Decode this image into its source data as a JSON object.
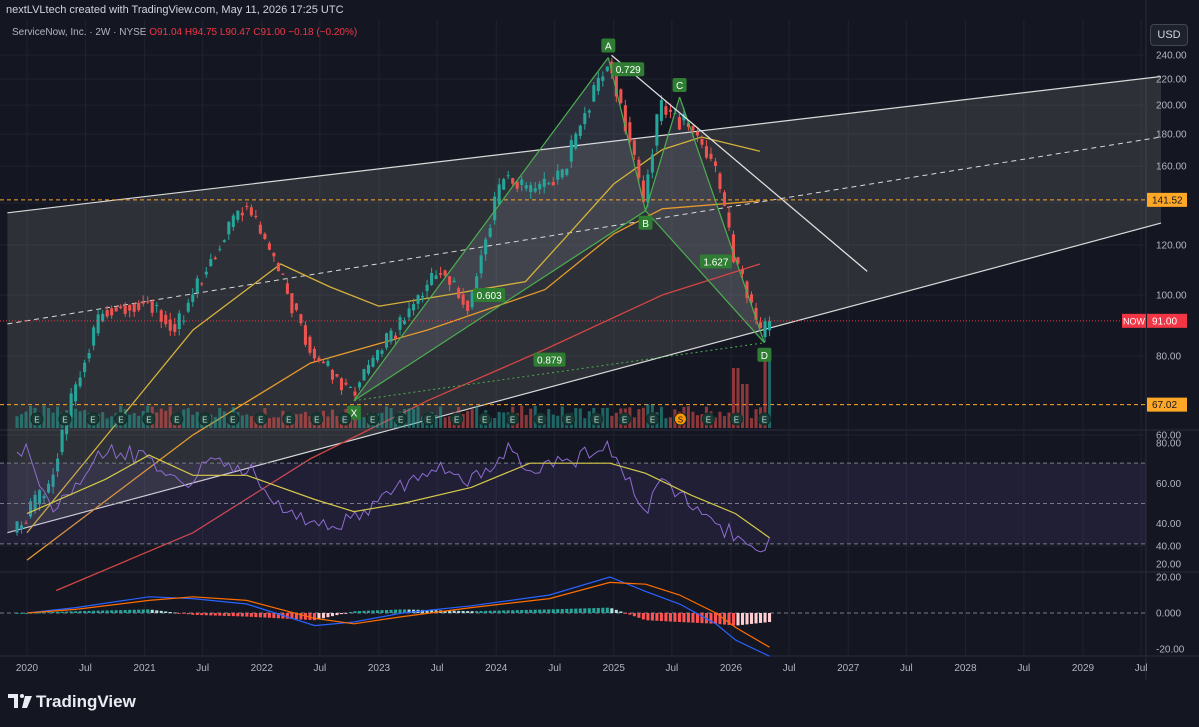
{
  "watermark": "nextLVLtech created with TradingView.com, May 11, 2026 17:25 UTC",
  "symbol": {
    "name": "ServiceNow, Inc. · 2W · NYSE",
    "ohlc": "O91.04 H94.75 L90.47 C91.00 −0.18 (−0.20%)"
  },
  "currency_button": "USD",
  "brand": "TradingView",
  "colors": {
    "up": "#26a69a",
    "down": "#ef5350",
    "pattern": "#4caf50",
    "price_line": "#f23645",
    "level": "#ffa726"
  },
  "chart_data": [
    {
      "type": "candlestick",
      "timeframe": "2W",
      "yscale": "log",
      "ylim": [
        34,
        250
      ],
      "x_tick_labels": [
        "2020",
        "Jul",
        "2021",
        "Jul",
        "2022",
        "Jul",
        "2023",
        "Jul",
        "2024",
        "Jul",
        "2025",
        "Jul",
        "2026",
        "Jul",
        "2027",
        "Jul",
        "2028",
        "Jul",
        "2029",
        "Jul"
      ],
      "y_tick_labels": [
        "40.00",
        "60.00",
        "80.00",
        "100.00",
        "120.00",
        "140.00",
        "160.00",
        "180.00",
        "200.00",
        "220.00",
        "240.00"
      ],
      "price_path": [
        [
          "2019-12-01",
          42
        ],
        [
          "2020-03-20",
          50
        ],
        [
          "2020-09-01",
          95
        ],
        [
          "2021-01-15",
          98
        ],
        [
          "2021-04-15",
          88
        ],
        [
          "2021-11-15",
          140
        ],
        [
          "2022-03-01",
          108
        ],
        [
          "2022-06-15",
          80
        ],
        [
          "2022-10-15",
          70
        ],
        [
          "2023-03-15",
          90
        ],
        [
          "2023-07-15",
          110
        ],
        [
          "2023-10-15",
          95
        ],
        [
          "2024-02-01",
          155
        ],
        [
          "2024-04-15",
          145
        ],
        [
          "2024-08-01",
          155
        ],
        [
          "2024-12-20",
          235
        ],
        [
          "2025-04-10",
          140
        ],
        [
          "2025-06-01",
          200
        ],
        [
          "2025-07-25",
          190
        ],
        [
          "2025-09-01",
          185
        ],
        [
          "2025-11-15",
          160
        ],
        [
          "2026-01-15",
          115
        ],
        [
          "2026-04-15",
          84
        ],
        [
          "2026-05-01",
          91
        ]
      ],
      "volume_spikes": [
        [
          "2026-01-20",
          0.75
        ],
        [
          "2026-04-20",
          0.95
        ],
        [
          "2026-02-15",
          0.55
        ],
        [
          "2025-04-20",
          0.3
        ]
      ],
      "last_price": {
        "symbol": "NOW",
        "value": 91.0
      },
      "horizontal_levels": [
        141.52,
        67.02
      ],
      "harmonic_pattern": {
        "points": [
          {
            "label": "X",
            "date": "2022-10-15",
            "price": 68
          },
          {
            "label": "A",
            "date": "2024-12-15",
            "price": 238
          },
          {
            "label": "B",
            "date": "2025-04-10",
            "price": 136
          },
          {
            "label": "C",
            "date": "2025-07-25",
            "price": 206
          },
          {
            "label": "D",
            "date": "2026-04-15",
            "price": 84
          }
        ],
        "ratios": [
          {
            "text": "0.729",
            "date": "2025-02-15",
            "price": 228
          },
          {
            "text": "0.603",
            "date": "2023-12-10",
            "price": 100
          },
          {
            "text": "1.627",
            "date": "2025-11-15",
            "price": 113
          },
          {
            "text": "0.879",
            "date": "2024-06-15",
            "price": 79
          }
        ]
      },
      "channel": {
        "upper": [
          [
            "2019-11-01",
            135
          ],
          [
            "2029-09-01",
            222
          ]
        ],
        "middle": [
          [
            "2019-11-01",
            90
          ],
          [
            "2029-09-01",
            178
          ]
        ],
        "lower": [
          [
            "2019-11-01",
            42
          ],
          [
            "2029-09-01",
            130
          ]
        ]
      },
      "trendline": [
        [
          "2024-12-25",
          240
        ],
        [
          "2027-03-01",
          109
        ]
      ],
      "moving_averages": [
        {
          "color": "#d4b13b",
          "points": [
            [
              "2020-01-01",
              42
            ],
            [
              "2021-06-01",
              88
            ],
            [
              "2022-03-01",
              112
            ],
            [
              "2022-08-01",
              103
            ],
            [
              "2023-01-01",
              96
            ],
            [
              "2023-08-01",
              100
            ],
            [
              "2024-04-01",
              105
            ],
            [
              "2024-09-01",
              128
            ],
            [
              "2025-01-01",
              150
            ],
            [
              "2025-06-01",
              170
            ],
            [
              "2025-10-01",
              178
            ],
            [
              "2026-04-01",
              169
            ]
          ]
        },
        {
          "color": "#e69a2e",
          "points": [
            [
              "2020-01-01",
              38
            ],
            [
              "2021-06-01",
              60
            ],
            [
              "2022-06-01",
              78
            ],
            [
              "2023-06-01",
              88
            ],
            [
              "2024-06-01",
              102
            ],
            [
              "2025-01-01",
              125
            ],
            [
              "2025-06-01",
              137
            ],
            [
              "2026-04-01",
              141
            ]
          ]
        },
        {
          "color": "#d44545",
          "points": [
            [
              "2020-04-01",
              34
            ],
            [
              "2021-06-01",
              42
            ],
            [
              "2022-06-01",
              55
            ],
            [
              "2023-06-01",
              68
            ],
            [
              "2024-06-01",
              82
            ],
            [
              "2025-06-01",
              100
            ],
            [
              "2026-04-01",
              112
            ]
          ]
        }
      ],
      "event_markers": [
        "E",
        "E",
        "E",
        "E",
        "E",
        "E",
        "E",
        "E",
        "E",
        "E",
        "E",
        "E",
        "E",
        "E",
        "E",
        "E",
        "E",
        "E",
        "E",
        "E",
        "E",
        "E",
        "E",
        "S",
        "E",
        "E",
        "E"
      ]
    },
    {
      "type": "line",
      "indicator": "RSI",
      "ylim": [
        15,
        85
      ],
      "y_tick_labels": [
        "20.00",
        "40.00",
        "60.00",
        "80.00"
      ],
      "levels": [
        70,
        50,
        30
      ],
      "rsi": [
        [
          "2020-01-01",
          75
        ],
        [
          "2020-03-20",
          48
        ],
        [
          "2020-09-01",
          78
        ],
        [
          "2021-01-15",
          72
        ],
        [
          "2021-04-15",
          58
        ],
        [
          "2021-08-01",
          70
        ],
        [
          "2021-11-15",
          68
        ],
        [
          "2022-03-01",
          48
        ],
        [
          "2022-06-15",
          38
        ],
        [
          "2022-10-15",
          42
        ],
        [
          "2023-03-15",
          58
        ],
        [
          "2023-07-15",
          68
        ],
        [
          "2023-10-15",
          60
        ],
        [
          "2024-02-01",
          78
        ],
        [
          "2024-04-15",
          68
        ],
        [
          "2024-08-01",
          70
        ],
        [
          "2024-12-20",
          78
        ],
        [
          "2025-04-10",
          45
        ],
        [
          "2025-06-01",
          60
        ],
        [
          "2025-07-25",
          54
        ],
        [
          "2025-11-15",
          40
        ],
        [
          "2026-01-15",
          34
        ],
        [
          "2026-04-15",
          26
        ],
        [
          "2026-05-01",
          30
        ]
      ],
      "signal": [
        [
          "2020-01-01",
          45
        ],
        [
          "2020-09-01",
          62
        ],
        [
          "2021-01-15",
          74
        ],
        [
          "2021-06-01",
          64
        ],
        [
          "2021-11-15",
          64
        ],
        [
          "2022-06-15",
          52
        ],
        [
          "2022-10-15",
          46
        ],
        [
          "2023-03-15",
          50
        ],
        [
          "2023-10-15",
          58
        ],
        [
          "2024-04-15",
          70
        ],
        [
          "2024-12-20",
          70
        ],
        [
          "2025-04-10",
          65
        ],
        [
          "2025-09-01",
          54
        ],
        [
          "2026-01-15",
          45
        ],
        [
          "2026-05-01",
          33
        ]
      ]
    },
    {
      "type": "line",
      "indicator": "MACD",
      "ylim": [
        -24,
        22
      ],
      "y_tick_labels": [
        "20.00",
        "0.000",
        "-20.00"
      ],
      "macd": [
        [
          "2020-01-01",
          0
        ],
        [
          "2020-06-01",
          3
        ],
        [
          "2021-01-15",
          9
        ],
        [
          "2021-06-01",
          8
        ],
        [
          "2021-11-15",
          5
        ],
        [
          "2022-06-15",
          -7
        ],
        [
          "2022-10-15",
          -5
        ],
        [
          "2023-03-15",
          0
        ],
        [
          "2023-10-15",
          4
        ],
        [
          "2024-06-15",
          10
        ],
        [
          "2024-12-20",
          20
        ],
        [
          "2025-04-10",
          12
        ],
        [
          "2025-07-25",
          5
        ],
        [
          "2025-11-15",
          -6
        ],
        [
          "2026-01-15",
          -15
        ],
        [
          "2026-05-01",
          -24
        ]
      ],
      "signal": [
        [
          "2020-01-01",
          0
        ],
        [
          "2020-06-01",
          2
        ],
        [
          "2021-01-15",
          7
        ],
        [
          "2021-06-01",
          9
        ],
        [
          "2021-11-15",
          7
        ],
        [
          "2022-06-15",
          -3
        ],
        [
          "2022-10-15",
          -6
        ],
        [
          "2023-03-15",
          -2
        ],
        [
          "2023-10-15",
          3
        ],
        [
          "2024-06-15",
          8
        ],
        [
          "2024-12-20",
          17
        ],
        [
          "2025-04-10",
          16
        ],
        [
          "2025-07-25",
          10
        ],
        [
          "2025-11-15",
          0
        ],
        [
          "2026-01-15",
          -8
        ],
        [
          "2026-05-01",
          -19
        ]
      ]
    }
  ]
}
